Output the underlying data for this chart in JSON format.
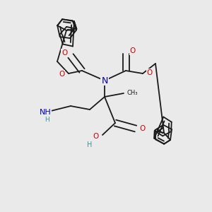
{
  "bg_color": "#eaeaea",
  "colors": {
    "bond": "#1a1a1a",
    "N": "#0000bb",
    "O": "#cc0000",
    "H": "#3a9595"
  },
  "bw": 1.3,
  "dbl_off": 0.013,
  "fs": 7.5,
  "fs_sm": 6.0
}
